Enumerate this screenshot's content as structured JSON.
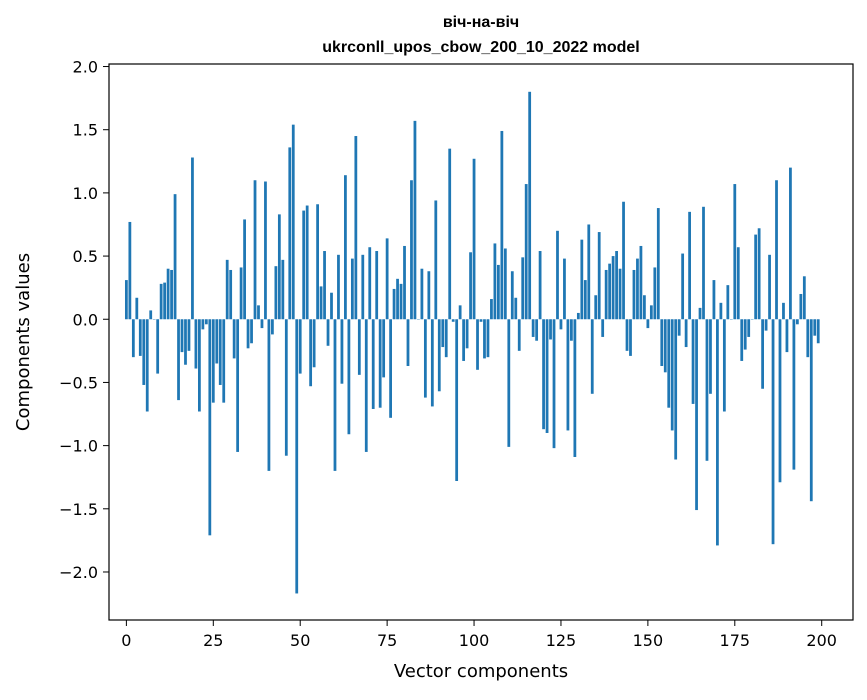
{
  "chart_data": {
    "type": "bar",
    "title": "віч-на-віч",
    "subtitle": "ukrconll_upos_cbow_200_10_2022 model",
    "xlabel": "Vector components",
    "ylabel": "Components values",
    "xlim": [
      -5,
      209
    ],
    "ylim": [
      -2.38,
      2.02
    ],
    "xticks": [
      0,
      25,
      50,
      75,
      100,
      125,
      150,
      175,
      200
    ],
    "xtick_labels": [
      "0",
      "25",
      "50",
      "75",
      "100",
      "125",
      "150",
      "175",
      "200"
    ],
    "yticks": [
      -2.0,
      -1.5,
      -1.0,
      -0.5,
      0.0,
      0.5,
      1.0,
      1.5,
      2.0
    ],
    "ytick_labels": [
      "−2.0",
      "−1.5",
      "−1.0",
      "−0.5",
      "0.0",
      "0.5",
      "1.0",
      "1.5",
      "2.0"
    ],
    "grid": false,
    "legend": "none",
    "bar_color": "#1f77b4",
    "x": [
      0,
      1,
      2,
      3,
      4,
      5,
      6,
      7,
      8,
      9,
      10,
      11,
      12,
      13,
      14,
      15,
      16,
      17,
      18,
      19,
      20,
      21,
      22,
      23,
      24,
      25,
      26,
      27,
      28,
      29,
      30,
      31,
      32,
      33,
      34,
      35,
      36,
      37,
      38,
      39,
      40,
      41,
      42,
      43,
      44,
      45,
      46,
      47,
      48,
      49,
      50,
      51,
      52,
      53,
      54,
      55,
      56,
      57,
      58,
      59,
      60,
      61,
      62,
      63,
      64,
      65,
      66,
      67,
      68,
      69,
      70,
      71,
      72,
      73,
      74,
      75,
      76,
      77,
      78,
      79,
      80,
      81,
      82,
      83,
      84,
      85,
      86,
      87,
      88,
      89,
      90,
      91,
      92,
      93,
      94,
      95,
      96,
      97,
      98,
      99,
      100,
      101,
      102,
      103,
      104,
      105,
      106,
      107,
      108,
      109,
      110,
      111,
      112,
      113,
      114,
      115,
      116,
      117,
      118,
      119,
      120,
      121,
      122,
      123,
      124,
      125,
      126,
      127,
      128,
      129,
      130,
      131,
      132,
      133,
      134,
      135,
      136,
      137,
      138,
      139,
      140,
      141,
      142,
      143,
      144,
      145,
      146,
      147,
      148,
      149,
      150,
      151,
      152,
      153,
      154,
      155,
      156,
      157,
      158,
      159,
      160,
      161,
      162,
      163,
      164,
      165,
      166,
      167,
      168,
      169,
      170,
      171,
      172,
      173,
      174,
      175,
      176,
      177,
      178,
      179,
      180,
      181,
      182,
      183,
      184,
      185,
      186,
      187,
      188,
      189,
      190,
      191,
      192,
      193,
      194,
      195,
      196,
      197,
      198,
      199
    ],
    "values": [
      0.31,
      0.77,
      -0.3,
      0.17,
      -0.29,
      -0.52,
      -0.73,
      0.07,
      0.0,
      -0.43,
      0.28,
      0.29,
      0.4,
      0.39,
      0.99,
      -0.64,
      -0.26,
      -0.36,
      -0.25,
      1.28,
      -0.39,
      -0.73,
      -0.08,
      -0.04,
      -1.71,
      -0.66,
      -0.35,
      -0.52,
      -0.66,
      0.47,
      0.39,
      -0.31,
      -1.05,
      0.41,
      0.79,
      -0.23,
      -0.19,
      1.1,
      0.11,
      -0.07,
      1.09,
      -1.2,
      -0.12,
      0.42,
      0.83,
      0.47,
      -1.08,
      1.36,
      1.54,
      -2.17,
      -0.43,
      0.86,
      0.9,
      -0.53,
      -0.38,
      0.91,
      0.26,
      0.54,
      -0.21,
      0.21,
      -1.2,
      0.51,
      -0.51,
      1.14,
      -0.91,
      0.48,
      1.45,
      -0.44,
      0.51,
      -1.05,
      0.57,
      -0.71,
      0.54,
      -0.7,
      -0.46,
      0.64,
      -0.78,
      0.24,
      0.32,
      0.28,
      0.58,
      -0.37,
      1.1,
      1.57,
      0.0,
      0.4,
      -0.62,
      0.38,
      -0.69,
      0.94,
      -0.57,
      -0.22,
      -0.3,
      1.35,
      -0.02,
      -1.28,
      0.11,
      -0.33,
      -0.23,
      0.53,
      1.27,
      -0.4,
      -0.02,
      -0.31,
      -0.3,
      0.16,
      0.6,
      0.43,
      1.49,
      0.56,
      -1.01,
      0.38,
      0.17,
      -0.25,
      0.49,
      1.07,
      1.8,
      -0.14,
      -0.17,
      0.54,
      -0.87,
      -0.9,
      -0.16,
      -1.02,
      0.7,
      -0.08,
      0.48,
      -0.88,
      -0.17,
      -1.09,
      0.05,
      0.63,
      0.31,
      0.75,
      -0.59,
      0.19,
      0.69,
      -0.14,
      0.39,
      0.44,
      0.5,
      0.54,
      0.4,
      0.93,
      -0.25,
      -0.29,
      0.39,
      0.48,
      0.58,
      0.19,
      -0.07,
      0.11,
      0.41,
      0.88,
      -0.37,
      -0.42,
      -0.7,
      -0.88,
      -1.11,
      -0.13,
      0.52,
      -0.22,
      0.85,
      -0.67,
      -1.51,
      0.09,
      0.89,
      -1.12,
      -0.59,
      0.31,
      -1.79,
      0.13,
      -0.73,
      0.27,
      0.0,
      1.07,
      0.57,
      -0.33,
      -0.24,
      -0.14,
      0.0,
      0.67,
      0.72,
      -0.55,
      -0.09,
      0.51,
      -1.78,
      1.1,
      -1.29,
      0.13,
      -0.26,
      1.2,
      -1.19,
      -0.04,
      0.2,
      0.34,
      -0.3,
      -1.44,
      -0.13,
      -0.19
    ]
  }
}
